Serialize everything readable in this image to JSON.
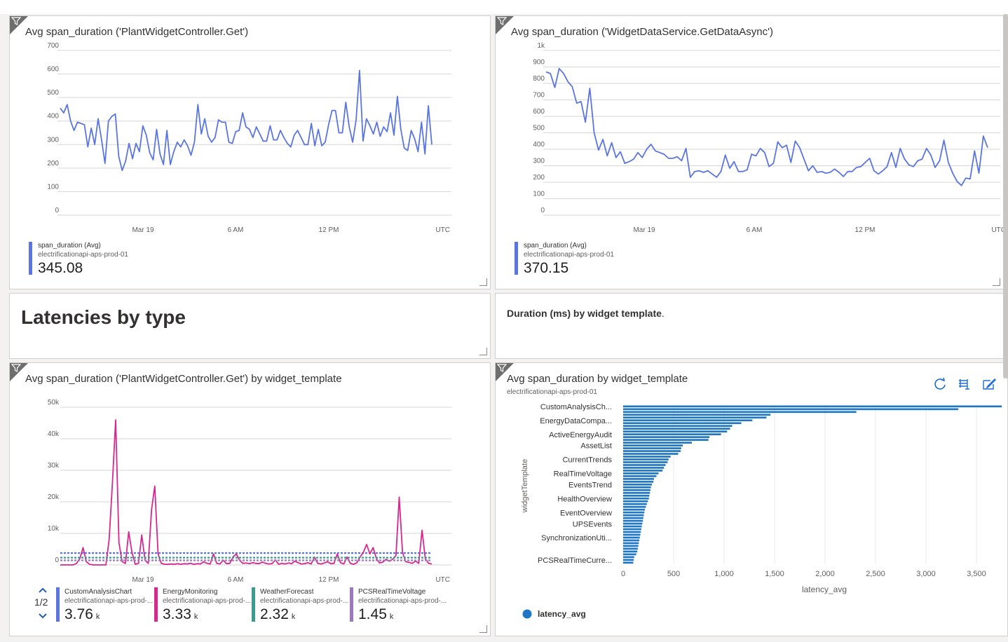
{
  "tiles": {
    "t1": {
      "title": "Avg span_duration ('PlantWidgetController.Get')",
      "y_ticks": [
        "700",
        "600",
        "500",
        "400",
        "300",
        "200",
        "100",
        "0"
      ],
      "x_ticks": [
        "Mar 19",
        "6 AM",
        "12 PM",
        "UTC"
      ],
      "legend": {
        "name": "span_duration (Avg)",
        "sub": "electrificationapi-aps-prod-01",
        "value": "345.08",
        "color": "#5b75e0"
      }
    },
    "t2": {
      "title": "Avg span_duration ('WidgetDataService.GetDataAsync')",
      "y_ticks": [
        "1k",
        "900",
        "800",
        "700",
        "600",
        "500",
        "400",
        "300",
        "200",
        "100",
        "0"
      ],
      "x_ticks": [
        "Mar 19",
        "6 AM",
        "12 PM",
        "UTC"
      ],
      "legend": {
        "name": "span_duration (Avg)",
        "sub": "electrificationapi-aps-prod-01",
        "value": "370.15",
        "color": "#5b75e0"
      }
    },
    "t3": {
      "heading": "Latencies by type"
    },
    "t4": {
      "text_bold": "Duration (ms) by widget template",
      "text_tail": "."
    },
    "t5": {
      "title": "Avg span_duration ('PlantWidgetController.Get') by widget_template",
      "y_ticks": [
        "50k",
        "40k",
        "30k",
        "20k",
        "10k",
        "0"
      ],
      "x_ticks": [
        "Mar 19",
        "6 AM",
        "12 PM",
        "UTC"
      ],
      "pager": "1/2",
      "legend": [
        {
          "name": "CustomAnalysisChart",
          "sub": "electrificationapi-aps-prod-...",
          "value": "3.76",
          "unit": "k",
          "color": "#5b75e0"
        },
        {
          "name": "EnergyMonitoring",
          "sub": "electrificationapi-aps-prod-...",
          "value": "3.33",
          "unit": "k",
          "color": "#d6288f"
        },
        {
          "name": "WeatherForecast",
          "sub": "electrificationapi-aps-prod-...",
          "value": "2.32",
          "unit": "k",
          "color": "#3a9b8f"
        },
        {
          "name": "PCSRealTimeVoltage",
          "sub": "electrificationapi-aps-prod-...",
          "value": "1.45",
          "unit": "k",
          "color": "#9c78c2"
        }
      ]
    },
    "t6": {
      "title": "Avg span_duration by widget_template",
      "subtitle": "electrificationapi-aps-prod-01",
      "y_axis_label": "widgetTemplate",
      "x_axis_label": "latency_avg",
      "category_labels": [
        "CustomAnalysisCh...",
        "EnergyDataCompa...",
        "ActiveEnergyAudit",
        "AssetList",
        "CurrentTrends",
        "RealTimeVoltage",
        "EventsTrend",
        "HealthOverview",
        "EventOverview",
        "UPSEvents",
        "SynchronizationUti...",
        "PCSRealTimeCurre..."
      ],
      "x_ticks": [
        "0",
        "500",
        "1,000",
        "1,500",
        "2,000",
        "2,500",
        "3,000",
        "3,500"
      ],
      "legend_label": "latency_avg",
      "legend_color": "#1f77c4",
      "icons": [
        "refresh-icon",
        "table-view-icon",
        "edit-icon"
      ]
    }
  },
  "chart_data": [
    {
      "type": "line",
      "title": "Avg span_duration ('PlantWidgetController.Get')",
      "ylim": [
        0,
        700
      ],
      "x_range": [
        "Mar 18 ~20:30",
        "Mar 19 ~18:30"
      ],
      "series": [
        {
          "name": "span_duration (Avg)",
          "values": [
            455,
            435,
            470,
            400,
            360,
            395,
            390,
            385,
            290,
            370,
            300,
            410,
            320,
            220,
            400,
            420,
            430,
            250,
            190,
            230,
            305,
            240,
            305,
            270,
            380,
            340,
            265,
            235,
            365,
            260,
            215,
            360,
            215,
            270,
            310,
            290,
            320,
            295,
            255,
            310,
            470,
            345,
            410,
            335,
            310,
            330,
            405,
            395,
            395,
            310,
            305,
            355,
            360,
            435,
            375,
            365,
            330,
            375,
            345,
            315,
            315,
            380,
            320,
            320,
            360,
            330,
            305,
            290,
            340,
            360,
            330,
            300,
            300,
            390,
            295,
            365,
            295,
            310,
            385,
            445,
            445,
            350,
            350,
            480,
            375,
            310,
            405,
            615,
            315,
            410,
            380,
            345,
            395,
            335,
            375,
            355,
            435,
            340,
            505,
            365,
            285,
            275,
            360,
            325,
            270,
            395,
            260,
            465,
            300
          ]
        }
      ]
    },
    {
      "type": "line",
      "title": "Avg span_duration ('WidgetDataService.GetDataAsync')",
      "ylim": [
        0,
        1000
      ],
      "x_range": [
        "Mar 18 ~20:30",
        "Mar 19 ~18:30"
      ],
      "series": [
        {
          "name": "span_duration (Avg)",
          "values": [
            870,
            860,
            775,
            890,
            860,
            810,
            780,
            680,
            690,
            565,
            770,
            500,
            395,
            460,
            360,
            440,
            350,
            385,
            315,
            325,
            340,
            380,
            350,
            400,
            430,
            390,
            380,
            370,
            345,
            345,
            355,
            330,
            405,
            230,
            265,
            270,
            260,
            270,
            250,
            230,
            265,
            365,
            285,
            325,
            265,
            265,
            275,
            370,
            360,
            405,
            380,
            295,
            315,
            445,
            410,
            425,
            320,
            450,
            410,
            340,
            270,
            300,
            260,
            265,
            255,
            260,
            280,
            260,
            235,
            265,
            265,
            290,
            295,
            320,
            345,
            270,
            250,
            270,
            295,
            380,
            290,
            405,
            340,
            305,
            295,
            330,
            340,
            405,
            365,
            290,
            330,
            455,
            320,
            255,
            205,
            180,
            225,
            220,
            390,
            255,
            480,
            410
          ]
        }
      ]
    },
    {
      "type": "line",
      "title": "Avg span_duration ('PlantWidgetController.Get') by widget_template",
      "ylim": [
        0,
        50000
      ],
      "series": [
        {
          "name": "CustomAnalysisChart",
          "values": [
            3760,
            3760,
            3760,
            3760,
            3760,
            3760,
            3760,
            3760,
            3760,
            3760,
            3760,
            3760,
            3760,
            3760,
            3760,
            3760,
            3760,
            3760,
            3760,
            3760,
            3760,
            3760,
            3760,
            3760,
            3760,
            3760,
            3760,
            3760,
            3760,
            3760,
            3760,
            3760,
            3760,
            3760,
            3760,
            3760,
            3760,
            3760,
            3760,
            3760,
            3760,
            3760,
            3760,
            3760,
            3760,
            3760,
            3760,
            3760,
            3760,
            3760,
            3760,
            3760,
            3760,
            3760,
            3760,
            3760,
            3760,
            3760,
            3760,
            3760
          ]
        },
        {
          "name": "EnergyMonitoring",
          "values": [
            0,
            0,
            0,
            0,
            0,
            500,
            2000,
            5500,
            1000,
            200,
            0,
            0,
            0,
            0,
            0,
            8000,
            26000,
            46000,
            7000,
            1000,
            500,
            10500,
            4000,
            200,
            500,
            9500,
            1500,
            500,
            17500,
            25000,
            3500,
            500,
            200,
            200,
            300,
            200,
            400,
            200,
            400,
            300,
            500,
            200,
            400,
            300,
            1000,
            500,
            300,
            3500,
            500,
            300,
            1500,
            400,
            500,
            2500,
            3500,
            1500,
            500,
            600,
            400,
            700,
            500,
            400,
            900,
            500,
            300,
            400,
            1600,
            200,
            500,
            300,
            600,
            400,
            1200,
            700,
            300,
            400,
            700,
            300,
            2500,
            500,
            300,
            600,
            1000,
            400,
            500,
            3500,
            700,
            300,
            2500,
            500,
            200,
            700,
            2500,
            4000,
            6500,
            3500,
            5500,
            2000,
            600,
            900,
            1800,
            1200,
            1800,
            3000,
            21500,
            4000,
            1000,
            800,
            500,
            1200,
            500,
            11000,
            2000,
            500,
            300
          ]
        },
        {
          "name": "WeatherForecast",
          "values": [
            2320,
            2320,
            2320,
            2320,
            2320,
            2320,
            2320,
            2320,
            2320,
            2320,
            2320,
            2320,
            2320,
            2320,
            2320,
            2320,
            2320,
            2320,
            2320,
            2320,
            2320,
            2320,
            2320,
            2320,
            2320,
            2320,
            2320,
            2320,
            2320,
            2320,
            2320,
            2320,
            2320,
            2320,
            2320,
            2320,
            2320,
            2320,
            2320,
            2320,
            2320,
            2320,
            2320,
            2320,
            2320,
            2320,
            2320,
            2320,
            2320,
            2320,
            2320,
            2320,
            2320,
            2320,
            2320,
            2320,
            2320,
            2320,
            2320,
            2320
          ]
        },
        {
          "name": "PCSRealTimeVoltage",
          "values": [
            1450,
            1450,
            1450,
            1450,
            1450,
            1450,
            1450,
            1450,
            1450,
            1450,
            1450,
            1450,
            1450,
            1450,
            1450,
            1450,
            1450,
            1450,
            1450,
            1450,
            1450,
            1450,
            1450,
            1450,
            1450,
            1450,
            1450,
            1450,
            1450,
            1450,
            1450,
            1450,
            1450,
            1450,
            1450,
            1450,
            1450,
            1450,
            1450,
            1450,
            1450,
            1450,
            1450,
            1450,
            1450,
            1450,
            1450,
            1450,
            1450,
            1450,
            1450,
            1450,
            1450,
            1450,
            1450,
            1450,
            1450,
            1450,
            1450,
            1450
          ]
        }
      ]
    },
    {
      "type": "bar",
      "title": "Avg span_duration by widget_template",
      "orientation": "horizontal",
      "xlabel": "latency_avg",
      "ylabel": "widgetTemplate",
      "xlim": [
        0,
        3750
      ],
      "values": [
        3780,
        3320,
        2310,
        1460,
        1420,
        1280,
        1170,
        1080,
        1060,
        1030,
        970,
        855,
        845,
        680,
        590,
        575,
        570,
        545,
        470,
        450,
        440,
        420,
        405,
        390,
        350,
        330,
        305,
        300,
        285,
        275,
        270,
        265,
        260,
        255,
        245,
        235,
        225,
        215,
        210,
        205,
        200,
        195,
        190,
        185,
        180,
        175,
        170,
        165,
        160,
        155,
        150,
        145,
        140,
        130,
        110,
        105,
        100
      ]
    }
  ]
}
